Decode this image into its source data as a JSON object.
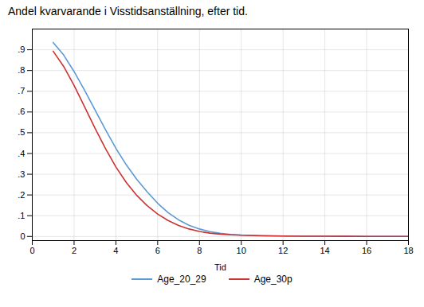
{
  "chart_data": {
    "type": "line",
    "title": "Andel kvarvarande i Visstidsanställning, efter tid.",
    "xlabel": "Tid",
    "x": [
      1,
      1.5,
      2,
      2.5,
      3,
      3.5,
      4,
      4.5,
      5,
      5.5,
      6,
      6.5,
      7,
      7.5,
      8,
      8.5,
      9,
      9.5,
      10,
      11,
      12,
      13,
      14,
      15,
      16,
      17,
      18
    ],
    "series": [
      {
        "name": "Age_20_29",
        "color": "#5B9BD5",
        "values": [
          0.935,
          0.875,
          0.795,
          0.705,
          0.61,
          0.515,
          0.425,
          0.345,
          0.275,
          0.215,
          0.16,
          0.115,
          0.08,
          0.054,
          0.036,
          0.023,
          0.015,
          0.01,
          0.007,
          0.004,
          0.002,
          0.001,
          0.001,
          0.0005,
          0.0003,
          0.0002,
          0.0001
        ]
      },
      {
        "name": "Age_30p",
        "color": "#CC3333",
        "values": [
          0.893,
          0.82,
          0.728,
          0.626,
          0.522,
          0.424,
          0.335,
          0.26,
          0.198,
          0.148,
          0.108,
          0.077,
          0.053,
          0.036,
          0.024,
          0.016,
          0.011,
          0.008,
          0.006,
          0.003,
          0.002,
          0.001,
          0.001,
          0.0005,
          0.0003,
          0.0002,
          0.0001
        ]
      }
    ],
    "xlim": [
      0,
      18
    ],
    "xticks": [
      0,
      2,
      4,
      6,
      8,
      10,
      12,
      14,
      16,
      18
    ],
    "ylim": [
      -0.02,
      1.0
    ],
    "yticks": [
      0,
      {
        "value": 0.1,
        "label": ".1"
      },
      {
        "value": 0.2,
        "label": ".2"
      },
      {
        "value": 0.3,
        "label": ".3"
      },
      {
        "value": 0.4,
        "label": ".4"
      },
      {
        "value": 0.5,
        "label": ".5"
      },
      {
        "value": 0.6,
        "label": ".6"
      },
      {
        "value": 0.7,
        "label": ".7"
      },
      {
        "value": 0.8,
        "label": ".8"
      },
      {
        "value": 0.9,
        "label": ".9"
      }
    ],
    "grid": true,
    "legend": "bottom"
  }
}
